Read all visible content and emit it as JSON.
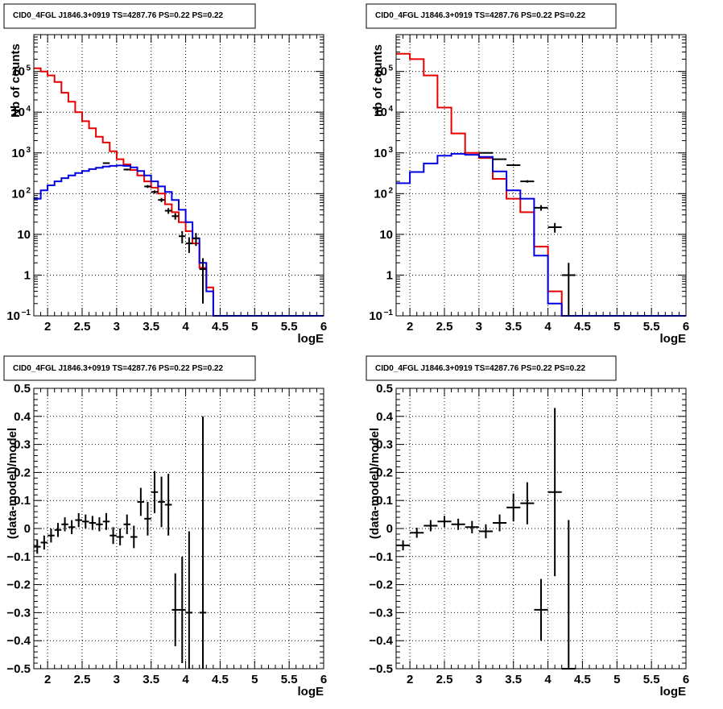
{
  "page_title": "CID0_4FGL J1846.3+0919 TS=4287.76 PS=0.22 PS=0.22",
  "chart_data": [
    {
      "id": "top-left",
      "type": "histogram",
      "title": "CID0_4FGL J1846.3+0919 TS=4287.76 PS=0.22 PS=0.22",
      "xlabel": "logE",
      "ylabel": "Nb of counts",
      "xlim": [
        1.8,
        6
      ],
      "ylim": [
        0.1,
        800000
      ],
      "yscale": "log",
      "grid": true,
      "xticks": [
        2,
        2.5,
        3,
        3.5,
        4,
        4.5,
        5,
        5.5,
        6
      ],
      "xtick_labels": [
        "2",
        "2.5",
        "3",
        "3.5",
        "4",
        "4.5",
        "5",
        "5.5",
        "6"
      ],
      "yticks": [
        0.1,
        1,
        10,
        100,
        1000,
        10000,
        100000
      ],
      "ytick_labels": [
        {
          "base": "10",
          "exp": "−1"
        },
        {
          "base": "1",
          "exp": ""
        },
        {
          "base": "10",
          "exp": ""
        },
        {
          "base": "10",
          "exp": "2"
        },
        {
          "base": "10",
          "exp": "3"
        },
        {
          "base": "10",
          "exp": "4"
        },
        {
          "base": "10",
          "exp": "5"
        }
      ],
      "bin_edges": [
        1.8,
        1.9,
        2.0,
        2.1,
        2.2,
        2.3,
        2.4,
        2.5,
        2.6,
        2.7,
        2.8,
        2.9,
        3.0,
        3.1,
        3.2,
        3.3,
        3.4,
        3.5,
        3.6,
        3.7,
        3.8,
        3.9,
        4.0,
        4.1,
        4.2,
        4.3,
        4.4,
        4.5,
        4.6,
        4.7,
        4.8,
        4.9,
        5.0,
        5.1,
        5.2,
        5.3,
        5.4,
        5.5,
        5.6,
        5.7,
        5.8,
        5.9,
        6.0
      ],
      "series": [
        {
          "name": "",
          "color": "#e60000",
          "values": [
            120000,
            100000,
            80000,
            55000,
            30000,
            18000,
            10000,
            6000,
            4000,
            2500,
            1800,
            1100,
            700,
            520,
            380,
            280,
            200,
            140,
            100,
            55,
            35,
            20,
            12,
            6,
            1.5,
            0.5,
            0.1,
            0.1,
            0.1,
            0.1,
            0.1,
            0.1,
            0.1,
            0.1,
            0.1,
            0.1,
            0.1,
            0.1,
            0.1,
            0.1,
            0.1,
            0.1
          ]
        },
        {
          "name": "",
          "color": "#0000e0",
          "values": [
            75,
            120,
            160,
            200,
            240,
            280,
            320,
            360,
            400,
            430,
            460,
            480,
            490,
            480,
            440,
            360,
            280,
            200,
            150,
            110,
            70,
            40,
            20,
            8,
            2,
            0.4,
            0.1,
            0.1,
            0.1,
            0.1,
            0.1,
            0.1,
            0.1,
            0.1,
            0.1,
            0.1,
            0.1,
            0.1,
            0.1,
            0.1,
            0.1,
            0.1
          ]
        }
      ],
      "points": {
        "x": [
          2.85,
          3.15,
          3.45,
          3.55,
          3.65,
          3.75,
          3.85,
          3.95,
          4.05,
          4.15,
          4.25
        ],
        "y": [
          560,
          390,
          150,
          110,
          70,
          38,
          28,
          9,
          6,
          8,
          1.4
        ],
        "xerr": 0.05,
        "yerr": [
          24,
          20,
          12,
          10,
          8,
          6,
          5,
          3,
          2.5,
          2.8,
          1.2
        ]
      }
    },
    {
      "id": "top-right",
      "type": "histogram",
      "title": "CID0_4FGL J1846.3+0919 TS=4287.76 PS=0.22 PS=0.22",
      "xlabel": "logE",
      "ylabel": "nb of counts",
      "xlim": [
        1.8,
        6
      ],
      "ylim": [
        0.1,
        800000
      ],
      "yscale": "log",
      "grid": true,
      "xticks": [
        2,
        2.5,
        3,
        3.5,
        4,
        4.5,
        5,
        5.5,
        6
      ],
      "xtick_labels": [
        "2",
        "2.5",
        "3",
        "3.5",
        "4",
        "4.5",
        "5",
        "5.5",
        "6"
      ],
      "yticks": [
        0.1,
        1,
        10,
        100,
        1000,
        10000,
        100000
      ],
      "ytick_labels": [
        {
          "base": "10",
          "exp": "−1"
        },
        {
          "base": "1",
          "exp": ""
        },
        {
          "base": "10",
          "exp": ""
        },
        {
          "base": "10",
          "exp": "2"
        },
        {
          "base": "10",
          "exp": "3"
        },
        {
          "base": "10",
          "exp": "4"
        },
        {
          "base": "10",
          "exp": "5"
        }
      ],
      "bin_edges": [
        1.8,
        2.0,
        2.2,
        2.4,
        2.6,
        2.8,
        3.0,
        3.2,
        3.4,
        3.6,
        3.8,
        4.0,
        4.2,
        4.4,
        4.6,
        4.8,
        5.0,
        5.2,
        5.4,
        5.6,
        5.8,
        6.0
      ],
      "series": [
        {
          "name": "",
          "color": "#e60000",
          "values": [
            270000,
            200000,
            80000,
            13000,
            3000,
            1000,
            750,
            230,
            75,
            35,
            5,
            0.4,
            0.1,
            0.1,
            0.1,
            0.1,
            0.1,
            0.1,
            0.1,
            0.1,
            0.1
          ]
        },
        {
          "name": "",
          "color": "#0000e0",
          "values": [
            180,
            340,
            550,
            850,
            950,
            900,
            800,
            350,
            120,
            75,
            3,
            0.2,
            0.1,
            0.1,
            0.1,
            0.1,
            0.1,
            0.1,
            0.1,
            0.1,
            0.1
          ]
        }
      ],
      "points": {
        "x": [
          3.1,
          3.3,
          3.5,
          3.7,
          3.9,
          4.1,
          4.3
        ],
        "y": [
          1000,
          700,
          500,
          200,
          45,
          15,
          1
        ],
        "xerr": 0.1,
        "yerr": [
          30,
          25,
          22,
          14,
          7,
          4,
          1
        ]
      }
    },
    {
      "id": "bottom-left",
      "type": "scatter",
      "title": "CID0_4FGL J1846.3+0919 TS=4287.76 PS=0.22 PS=0.22",
      "xlabel": "logE",
      "ylabel": "(data-model)/model",
      "xlim": [
        1.8,
        6
      ],
      "ylim": [
        -0.5,
        0.5
      ],
      "grid": true,
      "xticks": [
        2,
        2.5,
        3,
        3.5,
        4,
        4.5,
        5,
        5.5,
        6
      ],
      "xtick_labels": [
        "2",
        "2.5",
        "3",
        "3.5",
        "4",
        "4.5",
        "5",
        "5.5",
        "6"
      ],
      "yticks": [
        -0.5,
        -0.4,
        -0.3,
        -0.2,
        -0.1,
        0,
        0.1,
        0.2,
        0.3,
        0.4,
        0.5
      ],
      "ytick_labels": [
        "−0.5",
        "−0.4",
        "−0.3",
        "−0.2",
        "−0.1",
        "0",
        "0.1",
        "0.2",
        "0.3",
        "0.4",
        "0.5"
      ],
      "points": {
        "x": [
          1.85,
          1.95,
          2.05,
          2.15,
          2.25,
          2.35,
          2.45,
          2.55,
          2.65,
          2.75,
          2.85,
          2.95,
          3.05,
          3.15,
          3.25,
          3.35,
          3.45,
          3.55,
          3.65,
          3.75,
          3.85,
          3.95,
          4.05,
          4.25
        ],
        "y": [
          -0.065,
          -0.05,
          -0.025,
          -0.005,
          0.015,
          0.005,
          0.03,
          0.025,
          0.02,
          0.015,
          0.025,
          -0.025,
          -0.03,
          0.015,
          -0.03,
          0.095,
          0.035,
          0.13,
          0.095,
          0.085,
          -0.29,
          -0.29,
          -0.3,
          -0.3
        ],
        "xerr": 0.05,
        "yerr": [
          0.025,
          0.025,
          0.025,
          0.025,
          0.025,
          0.025,
          0.025,
          0.025,
          0.025,
          0.025,
          0.03,
          0.03,
          0.03,
          0.035,
          0.04,
          0.05,
          0.06,
          0.075,
          0.09,
          0.11,
          0.13,
          0.19,
          0.29,
          0.7
        ]
      }
    },
    {
      "id": "bottom-right",
      "type": "scatter",
      "title": "CID0_4FGL J1846.3+0919 TS=4287.76 PS=0.22 PS=0.22",
      "xlabel": "logE",
      "ylabel": "(data-model)/model",
      "xlim": [
        1.8,
        6
      ],
      "ylim": [
        -0.5,
        0.5
      ],
      "grid": true,
      "xticks": [
        2,
        2.5,
        3,
        3.5,
        4,
        4.5,
        5,
        5.5,
        6
      ],
      "xtick_labels": [
        "2",
        "2.5",
        "3",
        "3.5",
        "4",
        "4.5",
        "5",
        "5.5",
        "6"
      ],
      "yticks": [
        -0.5,
        -0.4,
        -0.3,
        -0.2,
        -0.1,
        0,
        0.1,
        0.2,
        0.3,
        0.4,
        0.5
      ],
      "ytick_labels": [
        "−0.5",
        "−0.4",
        "−0.3",
        "−0.2",
        "−0.1",
        "0",
        "0.1",
        "0.2",
        "0.3",
        "0.4",
        "0.5"
      ],
      "points": {
        "x": [
          1.9,
          2.1,
          2.3,
          2.5,
          2.7,
          2.9,
          3.1,
          3.3,
          3.5,
          3.7,
          3.9,
          4.1,
          4.3
        ],
        "y": [
          -0.06,
          -0.015,
          0.01,
          0.025,
          0.015,
          0.005,
          -0.01,
          0.02,
          0.075,
          0.09,
          -0.29,
          0.13,
          -0.5
        ],
        "xerr": 0.1,
        "yerr": [
          0.018,
          0.018,
          0.02,
          0.02,
          0.02,
          0.022,
          0.025,
          0.03,
          0.05,
          0.075,
          0.11,
          0.3,
          0.53
        ]
      }
    }
  ]
}
